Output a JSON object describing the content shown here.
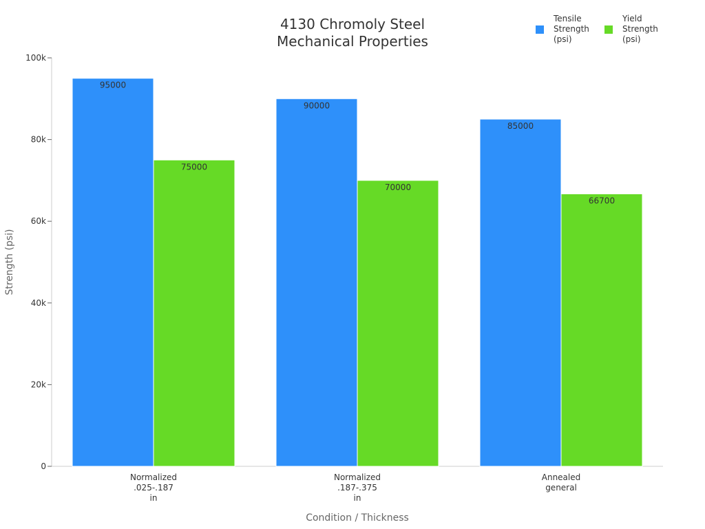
{
  "chart_data": {
    "type": "bar",
    "title_lines": [
      "4130 Chromoly Steel",
      "Mechanical Properties"
    ],
    "xlabel": "Condition / Thickness",
    "ylabel": "Strength (psi)",
    "ylim": [
      0,
      100000
    ],
    "yticks": [
      0,
      20000,
      40000,
      60000,
      80000,
      100000
    ],
    "ytick_labels": [
      "0",
      "20k",
      "40k",
      "60k",
      "80k",
      "100k"
    ],
    "categories": [
      [
        "Normalized",
        ".025-.187",
        "in"
      ],
      [
        "Normalized",
        ".187-.375",
        "in"
      ],
      [
        "Annealed",
        "general"
      ]
    ],
    "series": [
      {
        "name_lines": [
          "Tensile",
          "Strength",
          "(psi)"
        ],
        "color": "#2e90fa",
        "values": [
          95000,
          90000,
          85000
        ]
      },
      {
        "name_lines": [
          "Yield",
          "Strength",
          "(psi)"
        ],
        "color": "#66da26",
        "values": [
          75000,
          70000,
          66700
        ]
      }
    ],
    "grid": false,
    "legend": "top-right",
    "data_labels": true
  }
}
